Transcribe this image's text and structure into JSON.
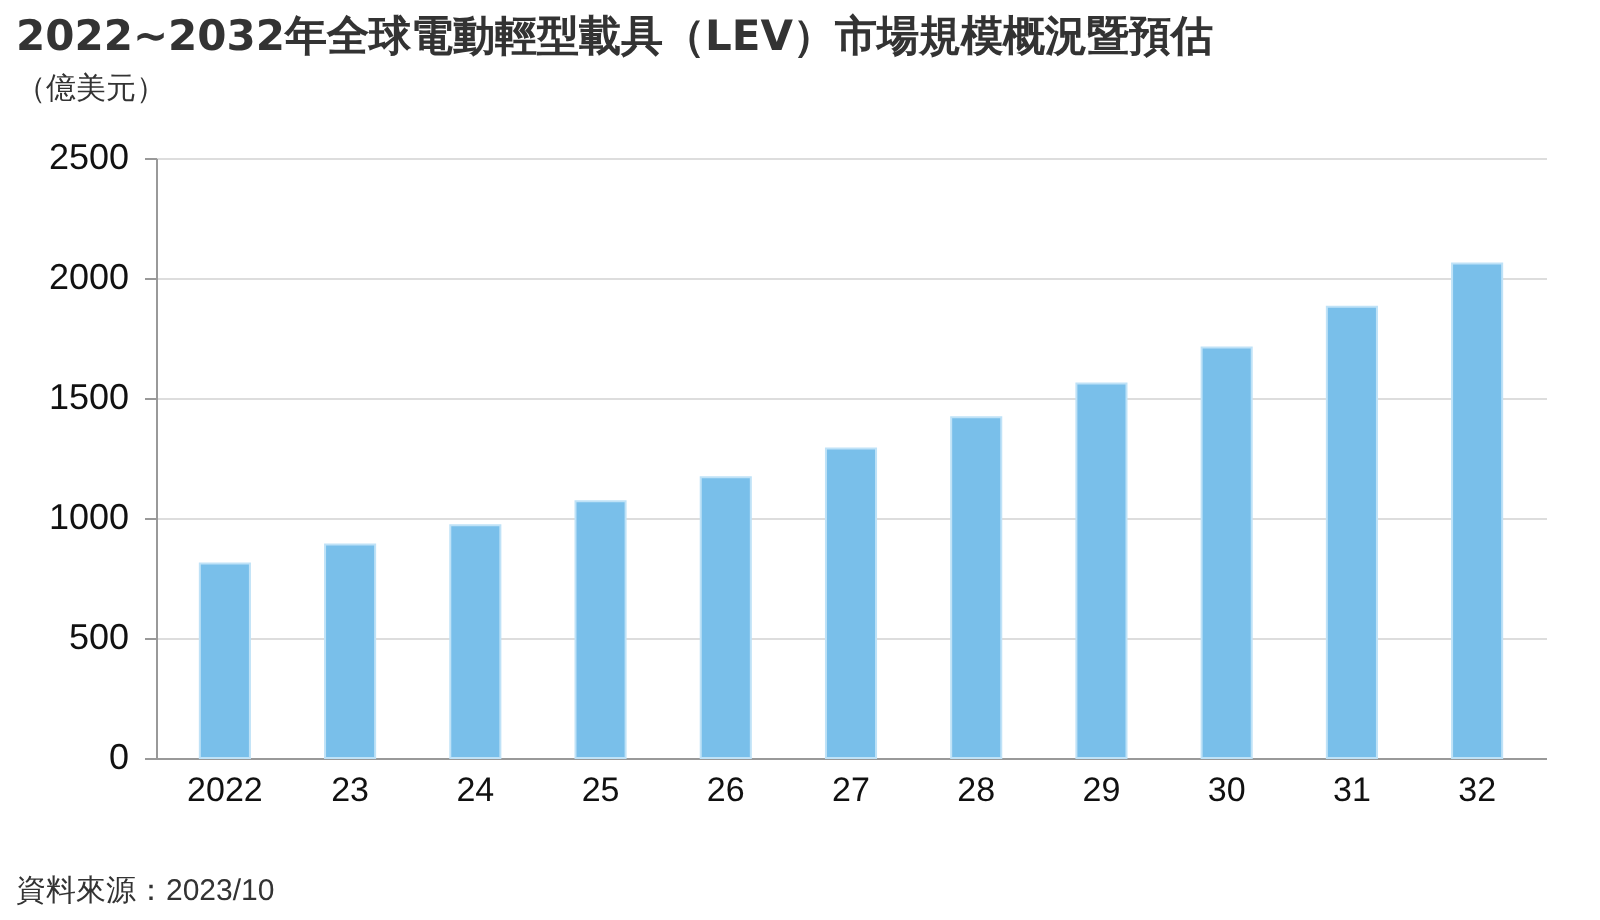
{
  "chart_data": {
    "type": "bar",
    "title": "2022~2032年全球電動輕型載具（LEV）市場規模概況暨預估",
    "subtitle": "（億美元）",
    "categories": [
      "2022",
      "23",
      "24",
      "25",
      "26",
      "27",
      "28",
      "29",
      "30",
      "31",
      "32"
    ],
    "values": [
      810,
      890,
      970,
      1070,
      1170,
      1290,
      1420,
      1560,
      1710,
      1880,
      2060
    ],
    "color": "#79bfea",
    "ylim": [
      0,
      2500
    ],
    "yticks": [
      0,
      500,
      1000,
      1500,
      2000,
      2500
    ],
    "grid": "y",
    "annotations": [
      "資料來源：2023/10"
    ]
  }
}
